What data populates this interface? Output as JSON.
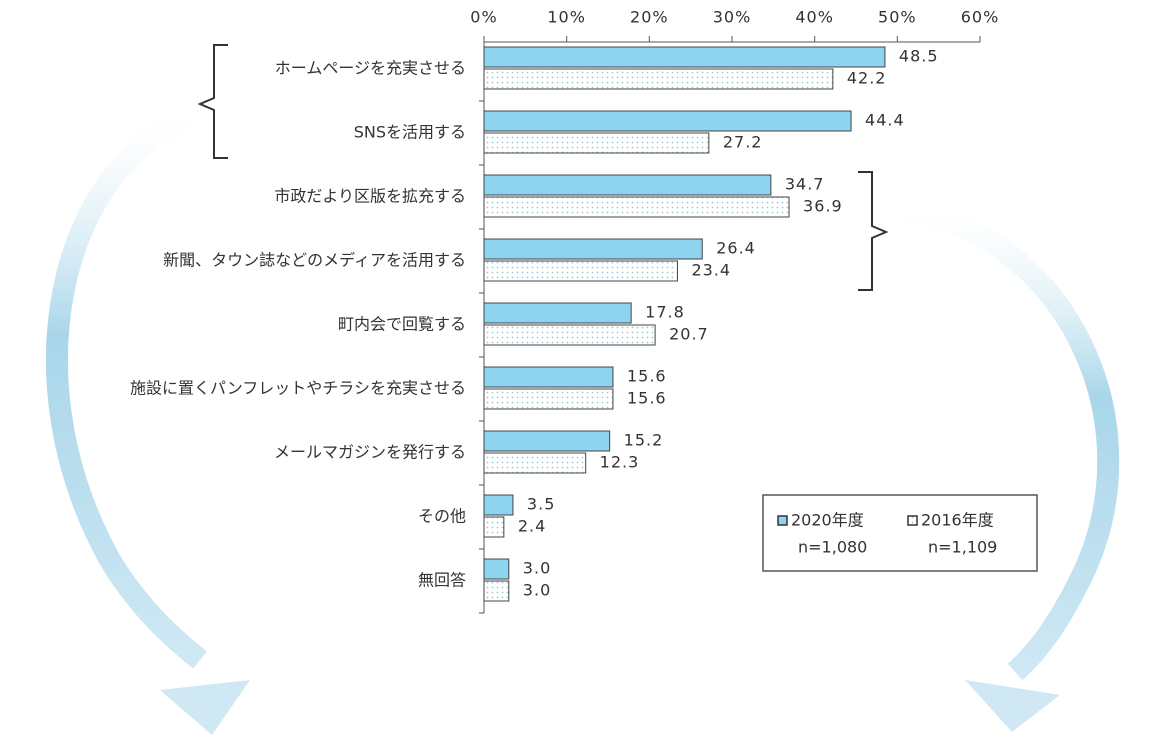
{
  "chart_data": {
    "type": "bar",
    "orientation": "horizontal",
    "categories": [
      "ホームページを充実させる",
      "SNSを活用する",
      "市政だより区版を拡充する",
      "新聞、タウン誌などのメディアを活用する",
      "町内会で回覧する",
      "施設に置くパンフレットやチラシを充実させる",
      "メールマガジンを発行する",
      "その他",
      "無回答"
    ],
    "series": [
      {
        "name": "2020年度",
        "note": "n=1,080",
        "color": "#8fd4ee",
        "fill": "solid",
        "values": [
          48.5,
          44.4,
          34.7,
          26.4,
          17.8,
          15.6,
          15.2,
          3.5,
          3.0
        ],
        "value_labels": [
          "48.5",
          "44.4",
          "34.7",
          "26.4",
          "17.8",
          "15.6",
          "15.2",
          "3.5",
          "3.0"
        ]
      },
      {
        "name": "2016年度",
        "note": "n=1,109",
        "color": "#9cc8d8",
        "fill": "dotted",
        "values": [
          42.2,
          27.2,
          36.9,
          23.4,
          20.7,
          15.6,
          12.3,
          2.4,
          3.0
        ],
        "value_labels": [
          "42.2",
          "27.2",
          "36.9",
          "23.4",
          "20.7",
          "15.6",
          "12.3",
          "2.4",
          "3.0"
        ]
      }
    ],
    "xlim": [
      0,
      60
    ],
    "xticks": [
      {
        "value": 0,
        "label": "0%"
      },
      {
        "value": 10,
        "label": "10%"
      },
      {
        "value": 20,
        "label": "20%"
      },
      {
        "value": 30,
        "label": "30%"
      },
      {
        "value": 40,
        "label": "40%"
      },
      {
        "value": 50,
        "label": "50%"
      },
      {
        "value": 60,
        "label": "60%"
      }
    ]
  }
}
